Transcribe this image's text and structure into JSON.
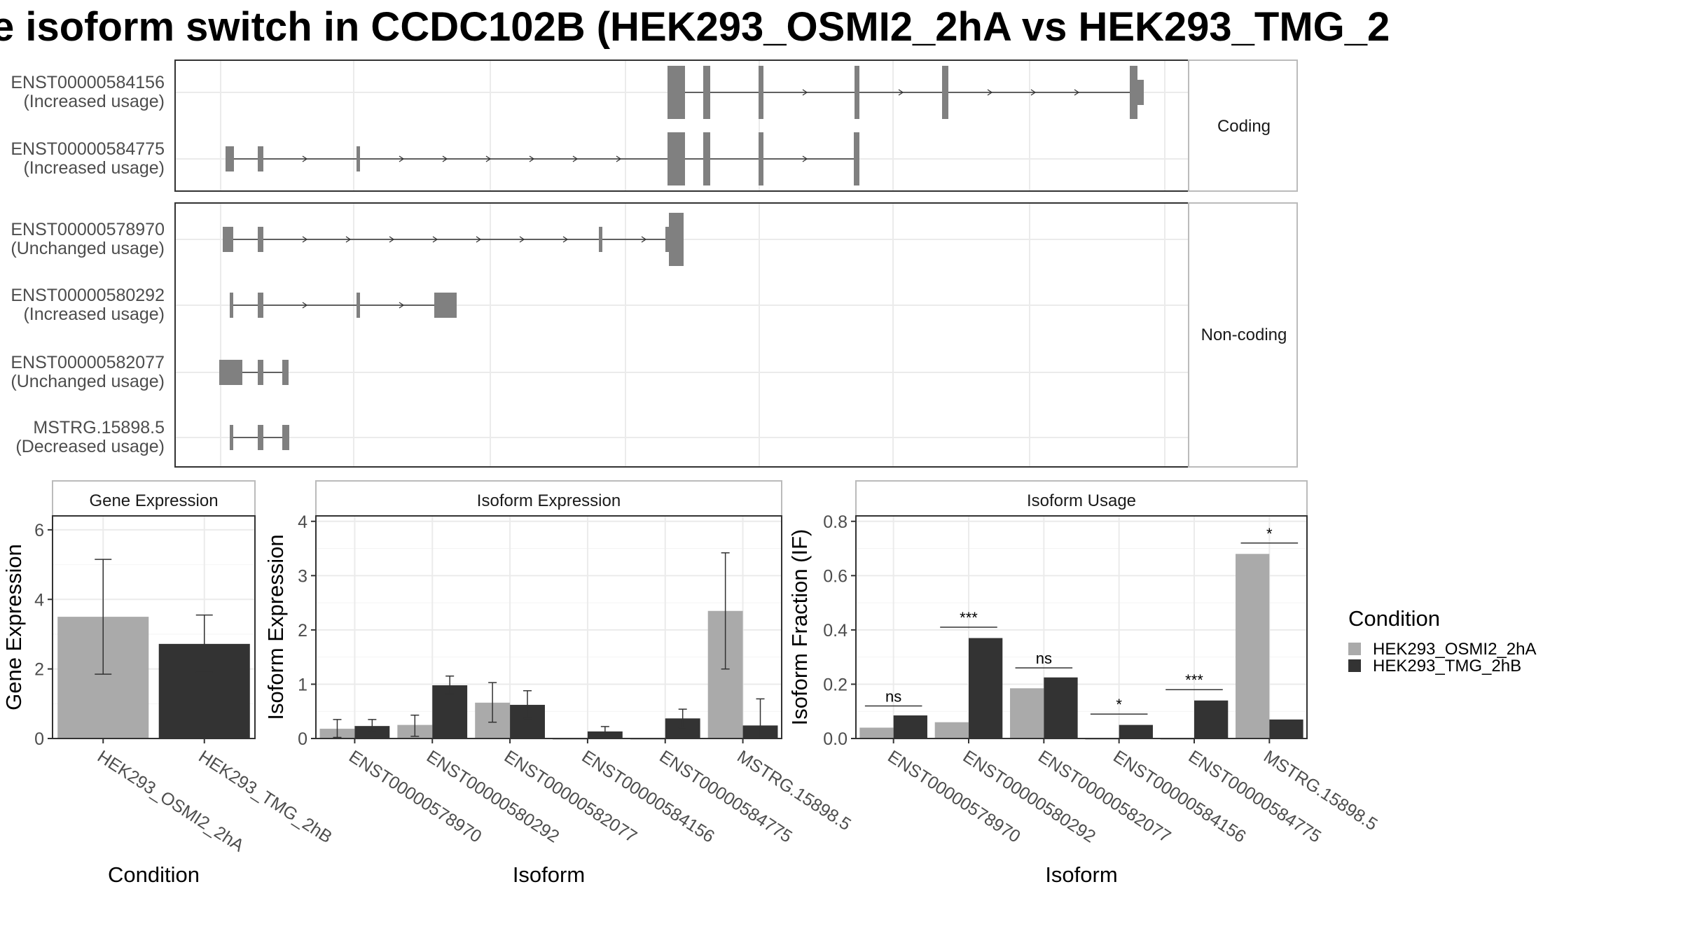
{
  "title": "e isoform switch in CCDC102B (HEK293_OSMI2_2hA vs HEK293_TMG_2",
  "colors": {
    "condA": "#aaaaaa",
    "condB": "#333333",
    "exon": "#808080",
    "grid": "#ebebeb",
    "strip_bg": "#ffffff"
  },
  "structure": {
    "coding_label": "Coding",
    "noncoding_label": "Non-coding",
    "coding": [
      {
        "id": "ENST00000584156",
        "usage": "(Increased usage)"
      },
      {
        "id": "ENST00000584775",
        "usage": "(Increased usage)"
      }
    ],
    "noncoding": [
      {
        "id": "ENST00000578970",
        "usage": "(Unchanged usage)"
      },
      {
        "id": "ENST00000580292",
        "usage": "(Increased usage)"
      },
      {
        "id": "ENST00000582077",
        "usage": "(Unchanged usage)"
      },
      {
        "id": "MSTRG.15898.5",
        "usage": "(Decreased usage)"
      }
    ]
  },
  "chart_data": [
    {
      "type": "bar",
      "panel": "Gene Expression",
      "xlabel": "Condition",
      "ylabel": "Gene Expression",
      "ylim": [
        0,
        6.4
      ],
      "yticks": [
        "0",
        "2",
        "4",
        "6"
      ],
      "categories": [
        "HEK293_OSMI2_2hA",
        "HEK293_TMG_2hB"
      ],
      "values": [
        3.5,
        2.72
      ],
      "err_low": [
        1.85,
        1.9
      ],
      "err_high": [
        5.15,
        3.55
      ]
    },
    {
      "type": "bar",
      "panel": "Isoform Expression",
      "xlabel": "Isoform",
      "ylabel": "Isoform Expression",
      "ylim": [
        0,
        4.1
      ],
      "yticks": [
        "0",
        "1",
        "2",
        "3",
        "4"
      ],
      "categories": [
        "ENST00000578970",
        "ENST00000580292",
        "ENST00000582077",
        "ENST00000584156",
        "ENST00000584775",
        "MSTRG.15898.5"
      ],
      "series": [
        {
          "name": "HEK293_OSMI2_2hA",
          "values": [
            0.18,
            0.25,
            0.66,
            0.0,
            0.0,
            2.35
          ],
          "err_low": [
            0.02,
            0.04,
            0.3,
            0.0,
            0.0,
            1.28
          ],
          "err_high": [
            0.35,
            0.43,
            1.03,
            0.0,
            0.0,
            3.42
          ]
        },
        {
          "name": "HEK293_TMG_2hB",
          "values": [
            0.23,
            0.98,
            0.62,
            0.13,
            0.37,
            0.24
          ],
          "err_low": [
            0.12,
            0.82,
            0.37,
            0.06,
            0.2,
            0.0
          ],
          "err_high": [
            0.35,
            1.15,
            0.88,
            0.22,
            0.54,
            0.73
          ]
        }
      ]
    },
    {
      "type": "bar",
      "panel": "Isoform Usage",
      "xlabel": "Isoform",
      "ylabel": "Isoform Fraction (IF)",
      "ylim": [
        0,
        0.82
      ],
      "yticks": [
        "0.0",
        "0.2",
        "0.4",
        "0.6",
        "0.8"
      ],
      "categories": [
        "ENST00000578970",
        "ENST00000580292",
        "ENST00000582077",
        "ENST00000584156",
        "ENST00000584775",
        "MSTRG.15898.5"
      ],
      "series": [
        {
          "name": "HEK293_OSMI2_2hA",
          "values": [
            0.04,
            0.06,
            0.185,
            0.0,
            0.0,
            0.68
          ]
        },
        {
          "name": "HEK293_TMG_2hB",
          "values": [
            0.085,
            0.37,
            0.225,
            0.05,
            0.14,
            0.07
          ]
        }
      ],
      "significance": [
        {
          "label": "ns",
          "y": 0.12
        },
        {
          "label": "***",
          "y": 0.41
        },
        {
          "label": "ns",
          "y": 0.26
        },
        {
          "label": "*",
          "y": 0.09
        },
        {
          "label": "***",
          "y": 0.18
        },
        {
          "label": "*",
          "y": 0.72
        }
      ]
    }
  ],
  "legend": {
    "title": "Condition",
    "items": [
      "HEK293_OSMI2_2hA",
      "HEK293_TMG_2hB"
    ]
  }
}
